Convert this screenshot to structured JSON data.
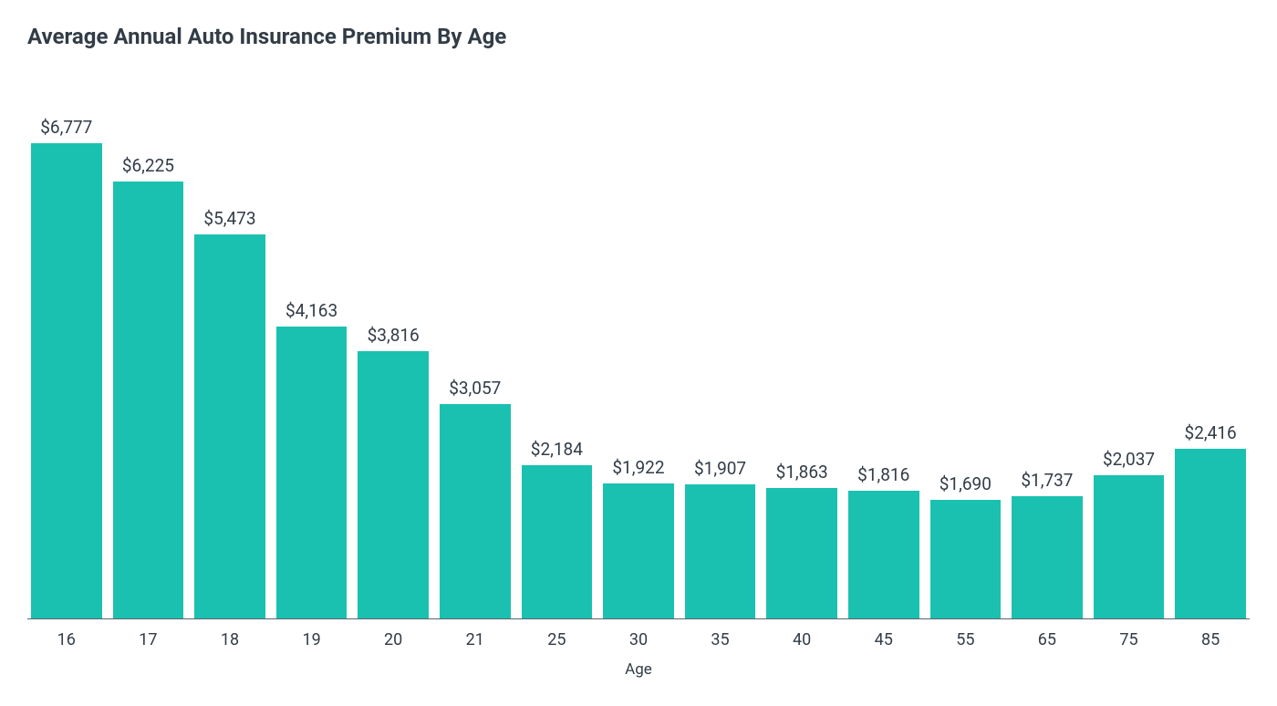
{
  "chart": {
    "type": "bar",
    "title": "Average Annual Auto Insurance Premium By Age",
    "title_fontsize": 24,
    "title_color": "#323c47",
    "x_axis_title": "Age",
    "bar_color": "#1ac1b0",
    "background_color": "#ffffff",
    "axis_line_color": "#5a6470",
    "value_label_color": "#323c47",
    "value_label_fontsize": 19,
    "x_label_color": "#323c47",
    "x_label_fontsize": 18,
    "max_value": 6777,
    "bars": [
      {
        "category": "16",
        "value": 6777,
        "label": "$6,777"
      },
      {
        "category": "17",
        "value": 6225,
        "label": "$6,225"
      },
      {
        "category": "18",
        "value": 5473,
        "label": "$5,473"
      },
      {
        "category": "19",
        "value": 4163,
        "label": "$4,163"
      },
      {
        "category": "20",
        "value": 3816,
        "label": "$3,816"
      },
      {
        "category": "21",
        "value": 3057,
        "label": "$3,057"
      },
      {
        "category": "25",
        "value": 2184,
        "label": "$2,184"
      },
      {
        "category": "30",
        "value": 1922,
        "label": "$1,922"
      },
      {
        "category": "35",
        "value": 1907,
        "label": "$1,907"
      },
      {
        "category": "40",
        "value": 1863,
        "label": "$1,863"
      },
      {
        "category": "45",
        "value": 1816,
        "label": "$1,816"
      },
      {
        "category": "55",
        "value": 1690,
        "label": "$1,690"
      },
      {
        "category": "65",
        "value": 1737,
        "label": "$1,737"
      },
      {
        "category": "75",
        "value": 2037,
        "label": "$2,037"
      },
      {
        "category": "85",
        "value": 2416,
        "label": "$2,416"
      }
    ]
  }
}
